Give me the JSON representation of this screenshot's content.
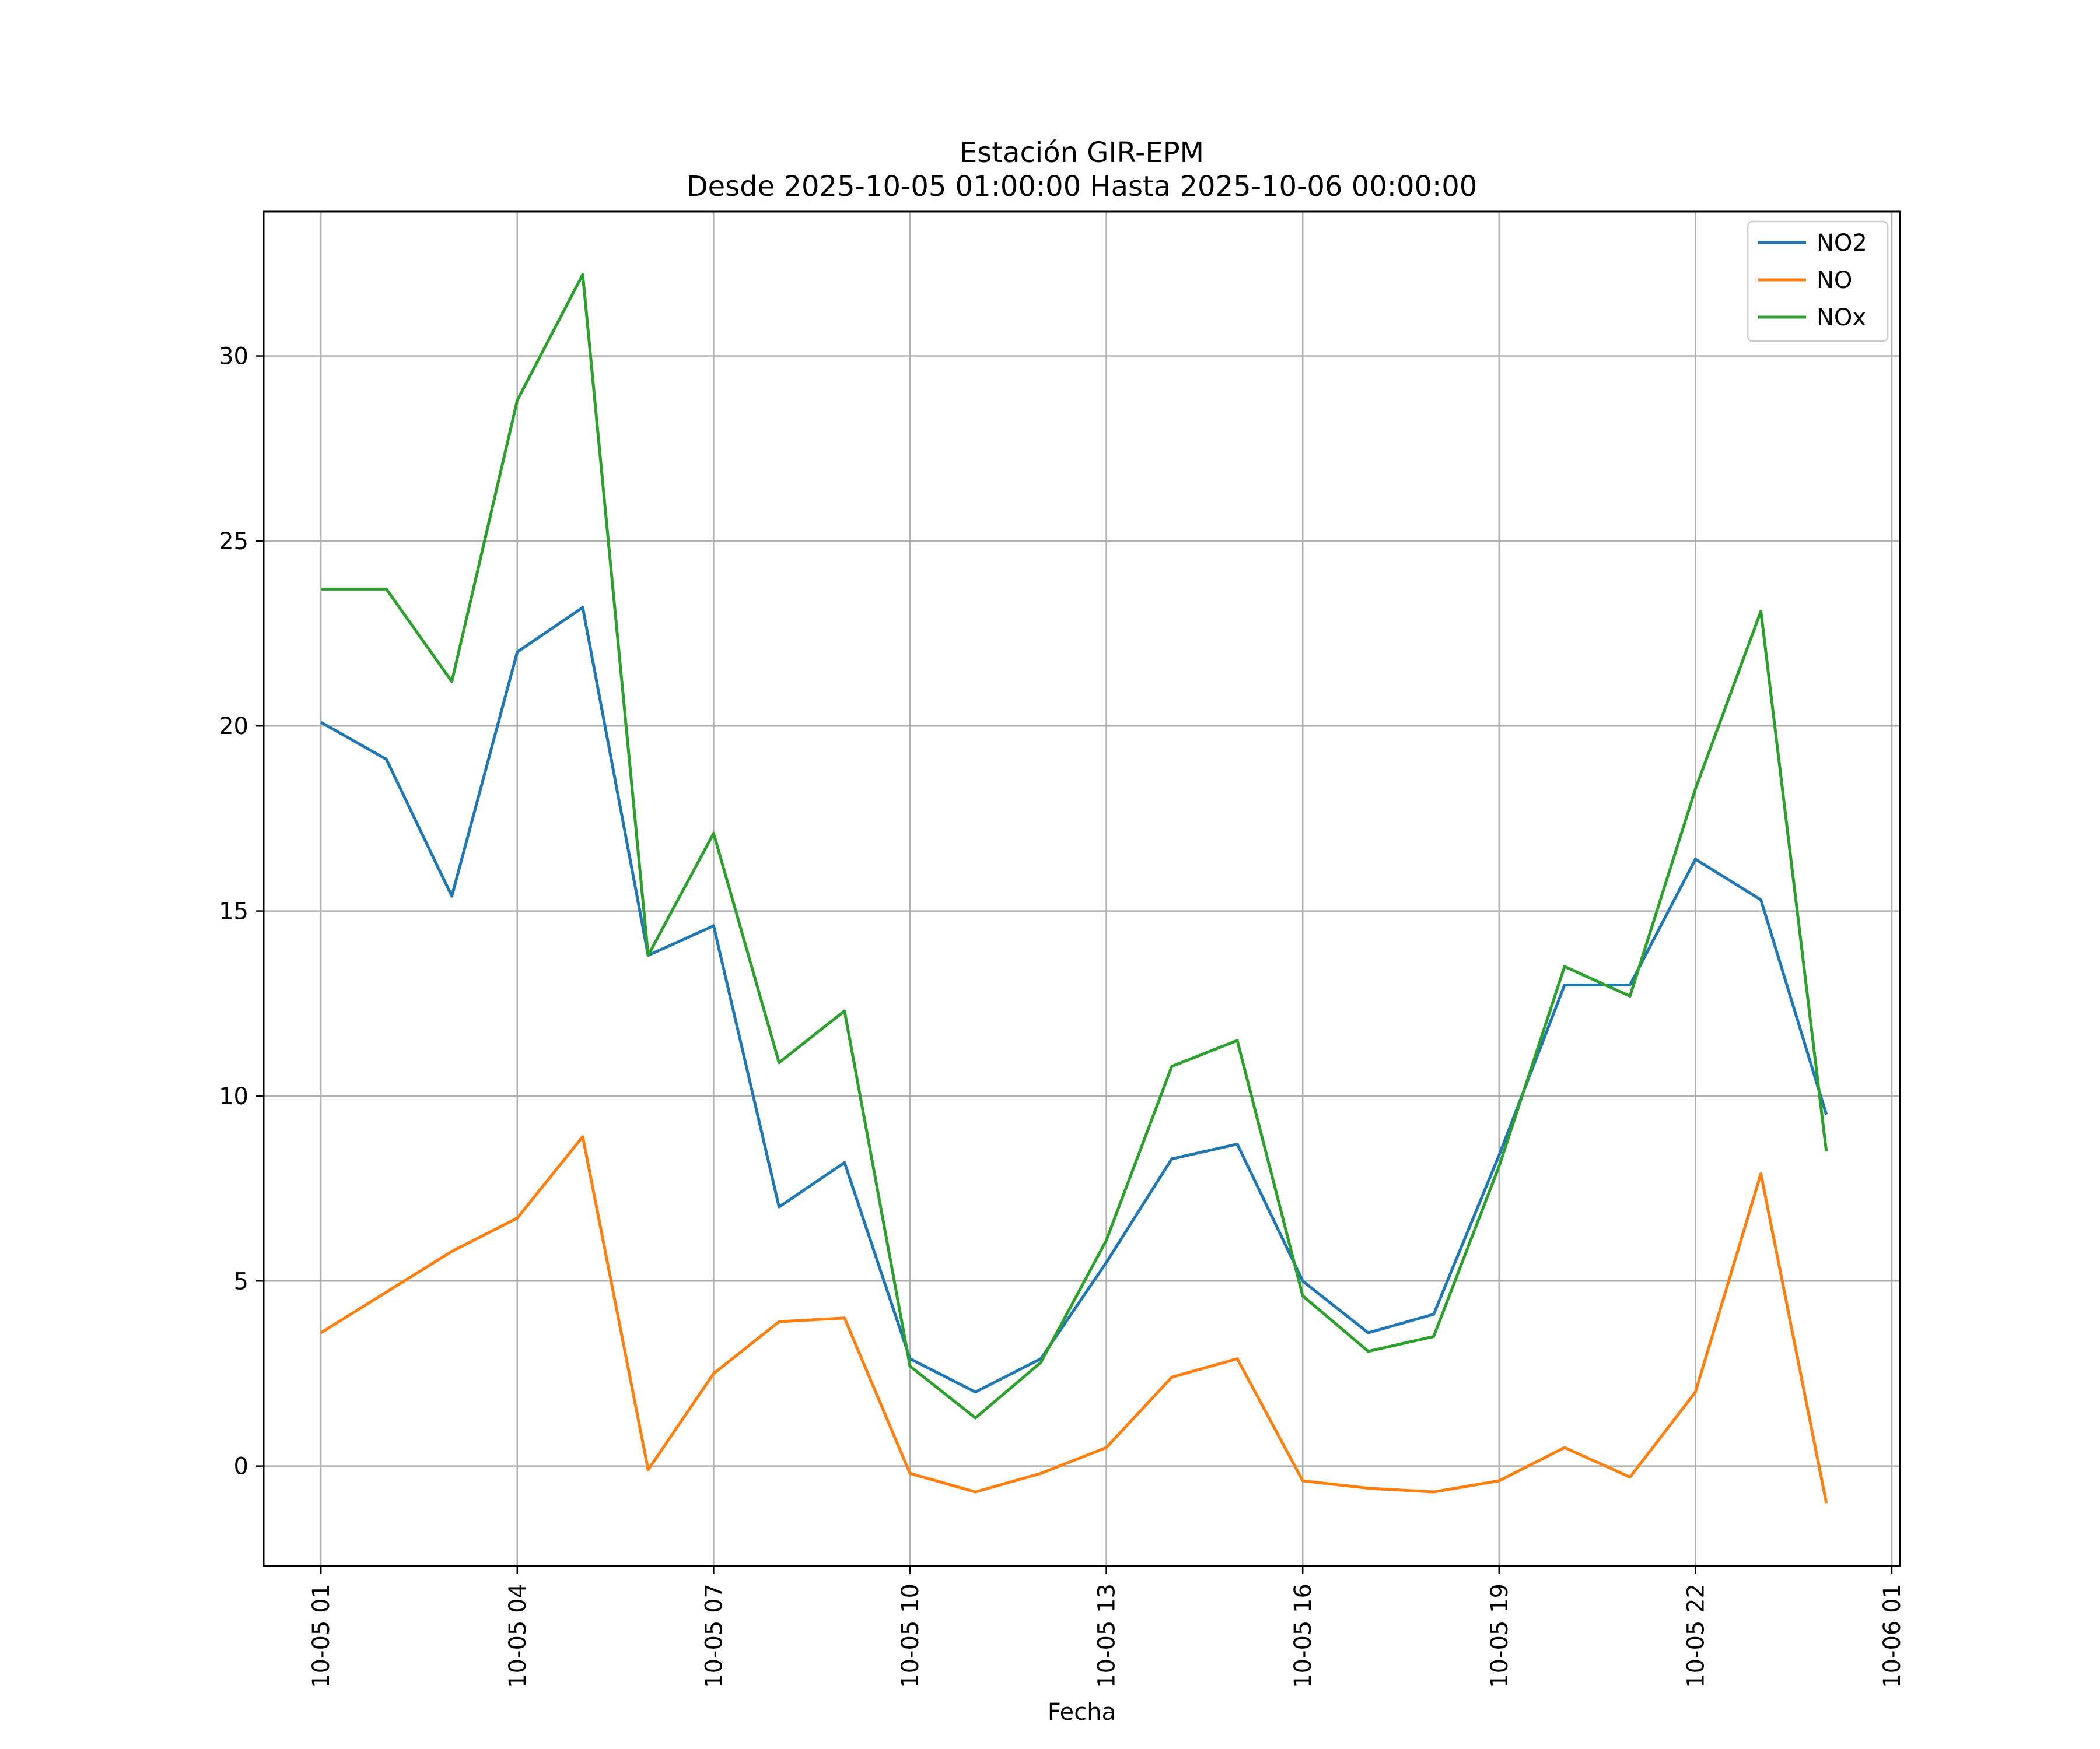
{
  "chart_data": {
    "type": "line",
    "title": "Estación GIR-EPM",
    "subtitle": "Desde 2025-10-05 01:00:00 Hasta 2025-10-06 00:00:00",
    "xlabel": "Fecha",
    "ylabel": "",
    "x": [
      "2025-10-05 01:00",
      "2025-10-05 02:00",
      "2025-10-05 03:00",
      "2025-10-05 04:00",
      "2025-10-05 05:00",
      "2025-10-05 06:00",
      "2025-10-05 07:00",
      "2025-10-05 08:00",
      "2025-10-05 09:00",
      "2025-10-05 10:00",
      "2025-10-05 11:00",
      "2025-10-05 12:00",
      "2025-10-05 13:00",
      "2025-10-05 14:00",
      "2025-10-05 15:00",
      "2025-10-05 16:00",
      "2025-10-05 17:00",
      "2025-10-05 18:00",
      "2025-10-05 19:00",
      "2025-10-05 20:00",
      "2025-10-05 21:00",
      "2025-10-05 22:00",
      "2025-10-05 23:00",
      "2025-10-06 00:00"
    ],
    "series": [
      {
        "name": "NO2",
        "color": "#1f77b4",
        "values": [
          20.1,
          19.1,
          15.4,
          22.0,
          23.2,
          13.8,
          14.6,
          7.0,
          8.2,
          2.9,
          2.0,
          2.9,
          5.5,
          8.3,
          8.7,
          5.0,
          3.6,
          4.1,
          8.4,
          13.0,
          13.0,
          16.4,
          15.3,
          9.5
        ]
      },
      {
        "name": "NO",
        "color": "#ff7f0e",
        "values": [
          3.6,
          4.7,
          5.8,
          6.7,
          8.9,
          -0.1,
          2.5,
          3.9,
          4.0,
          -0.2,
          -0.7,
          -0.2,
          0.5,
          2.4,
          2.9,
          -0.4,
          -0.6,
          -0.7,
          -0.4,
          0.5,
          -0.3,
          2.0,
          7.9,
          -1.0
        ]
      },
      {
        "name": "NOx",
        "color": "#2ca02c",
        "values": [
          23.7,
          23.7,
          21.2,
          28.8,
          32.2,
          13.8,
          17.1,
          10.9,
          12.3,
          2.7,
          1.3,
          2.8,
          6.1,
          10.8,
          11.5,
          4.6,
          3.1,
          3.5,
          8.1,
          13.5,
          12.7,
          18.3,
          23.1,
          8.5
        ]
      }
    ],
    "xticks": [
      "10-05 01",
      "10-05 04",
      "10-05 07",
      "10-05 10",
      "10-05 13",
      "10-05 16",
      "10-05 19",
      "10-05 22",
      "10-06 01"
    ],
    "yticks": [
      "0",
      "5",
      "10",
      "15",
      "20",
      "25",
      "30"
    ],
    "ylim": [
      -2.7,
      33.9
    ],
    "grid": true,
    "legend_position": "top-right"
  }
}
